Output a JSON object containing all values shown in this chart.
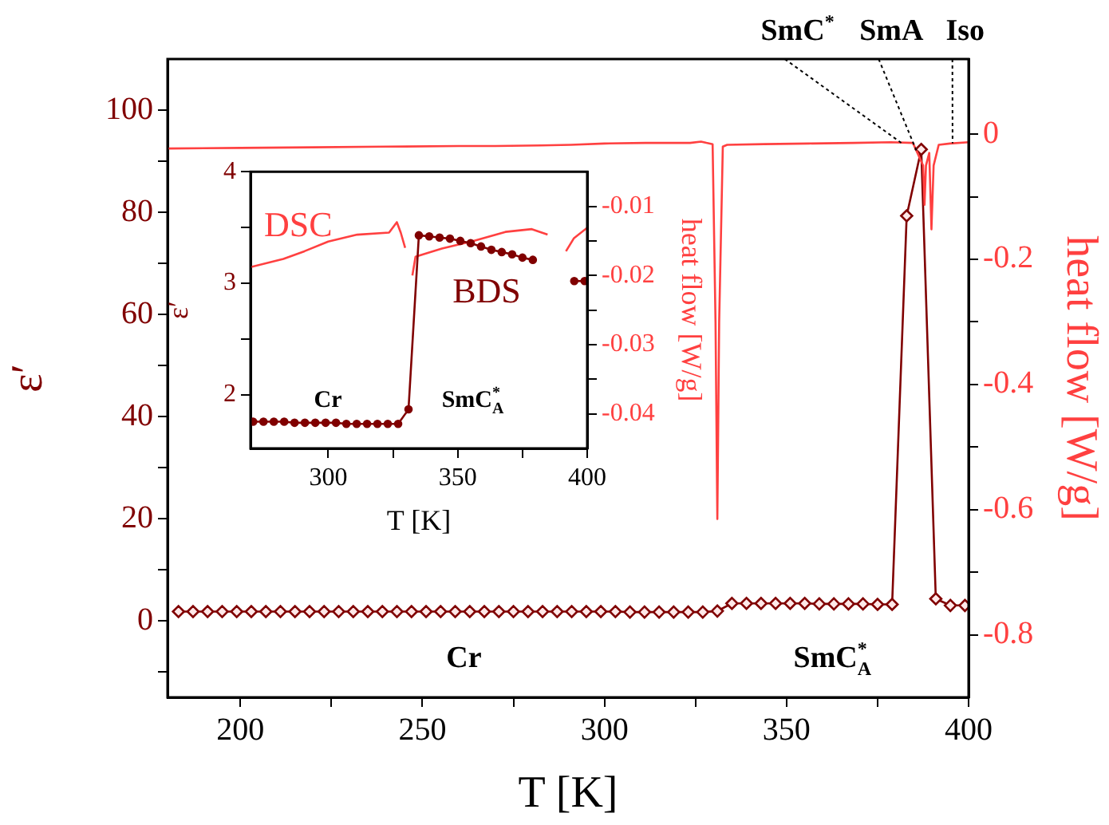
{
  "chart_data": [
    {
      "type": "line",
      "xlabel": "T [K]",
      "ylabel": "ε′",
      "y2label": "heat flow [W/g]",
      "xlim": [
        180,
        400
      ],
      "xticks": [
        200,
        {
          "value": 225,
          "label": null
        },
        250,
        {
          "value": 275,
          "label": null
        },
        300,
        {
          "value": 325,
          "label": null
        },
        350,
        {
          "value": 375,
          "label": null
        },
        400
      ],
      "ylim": [
        -15,
        110
      ],
      "yticks": [
        {
          "value": -10,
          "label": null
        },
        0,
        {
          "value": 10,
          "label": null
        },
        20,
        {
          "value": 30,
          "label": null
        },
        40,
        {
          "value": 50,
          "label": null
        },
        60,
        {
          "value": 70,
          "label": null
        },
        80,
        {
          "value": 90,
          "label": null
        },
        100
      ],
      "y2lim": [
        -0.9,
        0.12
      ],
      "y2ticks": [
        -0.8,
        {
          "value": -0.7,
          "label": null
        },
        -0.6,
        {
          "value": -0.5,
          "label": null
        },
        -0.4,
        {
          "value": -0.3,
          "label": null
        },
        -0.2,
        {
          "value": -0.1,
          "label": null
        },
        0
      ],
      "legend": false,
      "grid": false,
      "series": [
        {
          "color": "#ff4040",
          "axis": "y2",
          "marker": "none",
          "x": [
            180,
            200,
            220,
            240,
            260,
            270,
            282.7,
            290.8,
            300,
            311.2,
            323.5,
            326.5,
            328,
            329.7,
            330.5,
            331,
            331.5,
            332.5,
            333.7,
            343.9,
            356.1,
            368.4,
            378.6,
            384.7,
            387.5,
            387.9,
            388.3,
            389.2,
            389.8,
            390.4,
            391.8,
            394.9,
            400
          ],
          "values": [
            -0.023,
            -0.022,
            -0.021,
            -0.02,
            -0.019,
            -0.019,
            -0.018,
            -0.017,
            -0.015,
            -0.014,
            -0.014,
            -0.012,
            -0.014,
            -0.016,
            -0.3,
            -0.615,
            -0.3,
            -0.02,
            -0.017,
            -0.016,
            -0.015,
            -0.014,
            -0.013,
            -0.014,
            -0.05,
            -0.113,
            -0.05,
            -0.03,
            -0.152,
            -0.05,
            -0.017,
            -0.015,
            -0.013
          ]
        },
        {
          "color": "#800000",
          "marker": "diamond",
          "x": [
            183,
            187,
            191,
            195,
            199,
            203,
            207,
            211,
            215,
            219,
            223,
            227,
            231,
            235,
            239,
            243,
            247,
            251,
            255,
            259,
            263,
            267,
            271,
            275,
            279,
            283,
            287,
            291,
            295,
            299,
            303,
            307,
            311,
            315,
            319,
            323,
            327,
            331,
            335,
            339,
            343,
            347,
            351,
            355,
            359,
            363,
            367,
            371,
            375,
            379,
            383,
            387,
            391,
            395,
            399
          ],
          "values": [
            1.8,
            1.8,
            1.8,
            1.8,
            1.8,
            1.8,
            1.8,
            1.8,
            1.8,
            1.8,
            1.8,
            1.8,
            1.8,
            1.8,
            1.8,
            1.8,
            1.8,
            1.8,
            1.8,
            1.8,
            1.8,
            1.8,
            1.8,
            1.8,
            1.8,
            1.8,
            1.8,
            1.8,
            1.8,
            1.8,
            1.8,
            1.7,
            1.7,
            1.7,
            1.7,
            1.7,
            1.7,
            1.9,
            3.4,
            3.4,
            3.4,
            3.4,
            3.4,
            3.4,
            3.3,
            3.3,
            3.3,
            3.3,
            3.2,
            3.2,
            79.3,
            92.3,
            4.3,
            3,
            3
          ]
        }
      ],
      "annotations": [
        {
          "text": "SmC$^{*}$",
          "x": 381.5,
          "y": 93.6
        },
        {
          "text": "SmA",
          "x": 386,
          "y": 91.5
        },
        {
          "text": "Iso",
          "x": 395.6,
          "y": 93.5
        },
        "Cr",
        "SmC$_{A}$$^{*}$"
      ]
    },
    {
      "type": "line",
      "xlabel": "T [K]",
      "ylabel": "ε′",
      "y2label": "heat flow [W/g]",
      "xlim": [
        270,
        400
      ],
      "xticks": [
        300,
        {
          "value": 325,
          "label": null
        },
        350,
        {
          "value": 375,
          "label": null
        },
        400
      ],
      "ylim": [
        1.52,
        4
      ],
      "yticks": [
        2,
        {
          "value": 2.5,
          "label": null
        },
        3,
        {
          "value": 3.5,
          "label": null
        },
        4
      ],
      "y2lim": [
        -0.045,
        -0.005
      ],
      "y2ticks": [
        -0.04,
        {
          "value": -0.035,
          "label": null
        },
        -0.03,
        {
          "value": -0.025,
          "label": null
        },
        -0.02,
        {
          "value": -0.015,
          "label": null
        },
        -0.01
      ],
      "grid": false,
      "series": [
        {
          "name": "BDS",
          "color": "#800000",
          "marker": "circle",
          "x": [
            271,
            275,
            279,
            283,
            287,
            291,
            295,
            299,
            303,
            307,
            311,
            315,
            319,
            323,
            327,
            331,
            335,
            339,
            343,
            347,
            351,
            355,
            359,
            363,
            367,
            371,
            375,
            379
          ],
          "values": [
            1.76,
            1.76,
            1.76,
            1.76,
            1.75,
            1.75,
            1.75,
            1.75,
            1.75,
            1.74,
            1.74,
            1.74,
            1.74,
            1.74,
            1.74,
            1.87,
            3.43,
            3.42,
            3.41,
            3.4,
            3.38,
            3.36,
            3.33,
            3.3,
            3.28,
            3.26,
            3.23,
            3.21
          ]
        },
        {
          "name": "DSC",
          "color": "#ff4040",
          "axis": "y2",
          "marker": "none",
          "x": [
            270,
            282.7,
            290.8,
            300,
            311.2,
            323.5,
            326.5,
            328,
            329.7
          ],
          "values": [
            -0.0188,
            -0.0176,
            -0.0165,
            -0.0151,
            -0.0141,
            -0.0138,
            -0.0123,
            -0.0138,
            -0.016
          ]
        },
        {
          "color": "#800000",
          "marker": "circle",
          "x": [
            395,
            399
          ],
          "values": [
            3.02,
            3.02
          ]
        },
        {
          "color": "#ff4040",
          "axis": "y2",
          "marker": "none",
          "x": [
            332.5,
            333.7,
            343.9,
            356.1,
            368.4,
            378.6,
            384.7
          ],
          "values": [
            -0.02,
            -0.0173,
            -0.0161,
            -0.015,
            -0.0137,
            -0.0133,
            -0.0141
          ]
        },
        {
          "color": "#ff4040",
          "axis": "y2",
          "marker": "none",
          "x": [
            391.8,
            394.9,
            400
          ],
          "values": [
            -0.0165,
            -0.0146,
            -0.0131
          ]
        }
      ],
      "annotations": [
        "Cr",
        "SmC$_{A}$$^{*}$"
      ]
    }
  ]
}
